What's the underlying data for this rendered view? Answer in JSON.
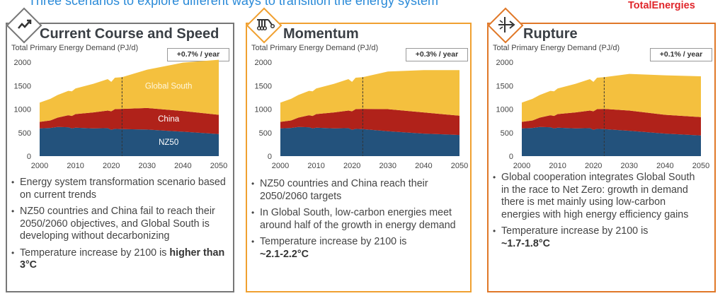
{
  "header": {
    "top_text": "Three scenarios to explore different ways to transition the energy system",
    "brand": "TotalEnergies"
  },
  "colors": {
    "nz50": "#23527c",
    "china": "#b0221a",
    "global_south": "#f4c03e"
  },
  "panels": [
    {
      "title": "Current Course and Speed",
      "icon": "trend-up-icon",
      "subtitle": "Total Primary Energy Demand (PJ/d)",
      "badge": "+0.7% / year",
      "bullets": [
        {
          "text": "Energy system transformation scenario based on current trends",
          "bold": ""
        },
        {
          "text": "NZ50 countries and China fail to reach their 2050/2060 objectives, and Global South is developing without decarbonizing",
          "bold": ""
        },
        {
          "text": "Temperature increase by 2100 is ",
          "bold": "higher than 3°C"
        }
      ]
    },
    {
      "title": "Momentum",
      "icon": "newtons-cradle-icon",
      "subtitle": "Total Primary Energy Demand (PJ/d)",
      "badge": "+0.3% / year",
      "bullets": [
        {
          "text": "NZ50 countries and China reach their 2050/2060 targets",
          "bold": ""
        },
        {
          "text": "In Global South, low-carbon energies meet around half of the growth in energy demand",
          "bold": ""
        },
        {
          "text": "Temperature increase by 2100 is ",
          "bold": "~2.1-2.2°C"
        }
      ]
    },
    {
      "title": "Rupture",
      "icon": "breakthrough-arrow-icon",
      "subtitle": "Total Primary Energy Demand (PJ/d)",
      "badge": "+0.1% / year",
      "bullets": [
        {
          "text": "Global cooperation integrates Global South in the race to Net Zero: growth in demand there is met mainly using low-carbon energies with high energy efficiency gains",
          "bold": ""
        },
        {
          "text": "Temperature increase by 2100 is ",
          "bold": "~1.7-1.8°C"
        }
      ]
    }
  ],
  "chart_data": [
    {
      "type": "area",
      "title": "Current Course and Speed",
      "ylabel": "Total Primary Energy Demand (PJ/d)",
      "ylim": [
        0,
        2000
      ],
      "yticks": [
        "0",
        "500",
        "1000",
        "1500",
        "2000"
      ],
      "xticks": [
        "2000",
        "2010",
        "2020",
        "2030",
        "2040",
        "2050"
      ],
      "xlim": [
        2000,
        2050
      ],
      "divider_year": 2023,
      "x": [
        2000,
        2003,
        2005,
        2008,
        2009,
        2010,
        2015,
        2019,
        2020,
        2021,
        2023,
        2030,
        2040,
        2050
      ],
      "series": [
        {
          "name": "NZ50",
          "values": [
            590,
            600,
            620,
            615,
            590,
            605,
            590,
            595,
            560,
            580,
            575,
            565,
            520,
            470
          ]
        },
        {
          "name": "China",
          "values": [
            140,
            160,
            200,
            255,
            265,
            290,
            340,
            375,
            395,
            420,
            430,
            460,
            440,
            410
          ]
        },
        {
          "name": "Global South",
          "values": [
            410,
            460,
            480,
            520,
            525,
            545,
            610,
            670,
            625,
            670,
            675,
            815,
            1030,
            1170
          ]
        }
      ],
      "labels": [
        "Global South",
        "China",
        "NZ50"
      ]
    },
    {
      "type": "area",
      "title": "Momentum",
      "ylabel": "Total Primary Energy Demand (PJ/d)",
      "ylim": [
        0,
        2000
      ],
      "yticks": [
        "0",
        "500",
        "1000",
        "1500",
        "2000"
      ],
      "xticks": [
        "2000",
        "2010",
        "2020",
        "2030",
        "2040",
        "2050"
      ],
      "xlim": [
        2000,
        2050
      ],
      "divider_year": 2023,
      "x": [
        2000,
        2003,
        2005,
        2008,
        2009,
        2010,
        2015,
        2019,
        2020,
        2021,
        2023,
        2030,
        2040,
        2050
      ],
      "series": [
        {
          "name": "NZ50",
          "values": [
            590,
            600,
            620,
            615,
            590,
            605,
            590,
            595,
            560,
            580,
            575,
            530,
            480,
            450
          ]
        },
        {
          "name": "China",
          "values": [
            140,
            160,
            200,
            255,
            265,
            290,
            340,
            375,
            395,
            420,
            430,
            470,
            450,
            410
          ]
        },
        {
          "name": "Global South",
          "values": [
            410,
            460,
            480,
            520,
            525,
            545,
            610,
            670,
            625,
            670,
            675,
            800,
            900,
            970
          ]
        }
      ]
    },
    {
      "type": "area",
      "title": "Rupture",
      "ylabel": "Total Primary Energy Demand (PJ/d)",
      "ylim": [
        0,
        2000
      ],
      "yticks": [
        "0",
        "500",
        "1000",
        "1500",
        "2000"
      ],
      "xticks": [
        "2000",
        "2010",
        "2020",
        "2030",
        "2040",
        "2050"
      ],
      "xlim": [
        2000,
        2050
      ],
      "divider_year": 2023,
      "x": [
        2000,
        2003,
        2005,
        2008,
        2009,
        2010,
        2015,
        2019,
        2020,
        2021,
        2023,
        2030,
        2040,
        2050
      ],
      "series": [
        {
          "name": "NZ50",
          "values": [
            590,
            600,
            620,
            615,
            590,
            605,
            590,
            595,
            560,
            580,
            575,
            540,
            480,
            440
          ]
        },
        {
          "name": "China",
          "values": [
            140,
            160,
            200,
            255,
            265,
            290,
            340,
            375,
            395,
            420,
            430,
            430,
            400,
            390
          ]
        },
        {
          "name": "Global South",
          "values": [
            410,
            460,
            480,
            520,
            525,
            545,
            610,
            670,
            625,
            670,
            675,
            780,
            840,
            870
          ]
        }
      ]
    }
  ]
}
